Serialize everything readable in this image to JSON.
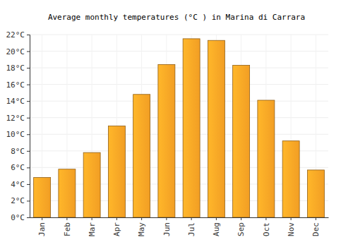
{
  "chart_data": {
    "type": "bar",
    "title": "Average monthly temperatures (°C ) in Marina di Carrara",
    "categories": [
      "Jan",
      "Feb",
      "Mar",
      "Apr",
      "May",
      "Jun",
      "Jul",
      "Aug",
      "Sep",
      "Oct",
      "Nov",
      "Dec"
    ],
    "values": [
      4.8,
      5.8,
      7.8,
      11.0,
      14.8,
      18.4,
      21.5,
      21.3,
      18.3,
      14.1,
      9.2,
      5.7
    ],
    "color": "#ffa726",
    "ylim": [
      0,
      22
    ],
    "yticks": [
      {
        "value": 0,
        "label": "0°C"
      },
      {
        "value": 2,
        "label": "2°C"
      },
      {
        "value": 4,
        "label": "4°C"
      },
      {
        "value": 6,
        "label": "6°C"
      },
      {
        "value": 8,
        "label": "8°C"
      },
      {
        "value": 10,
        "label": "10°C"
      },
      {
        "value": 12,
        "label": "12°C"
      },
      {
        "value": 14,
        "label": "14°C"
      },
      {
        "value": 16,
        "label": "16°C"
      },
      {
        "value": 18,
        "label": "18°C"
      },
      {
        "value": 20,
        "label": "20°C"
      },
      {
        "value": 22,
        "label": "22°C"
      }
    ],
    "grid": true
  }
}
